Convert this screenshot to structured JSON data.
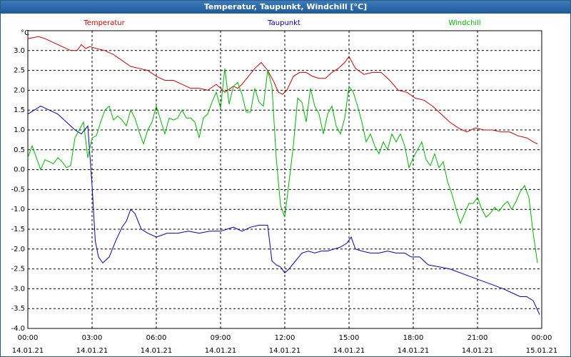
{
  "window": {
    "title": "Temperatur, Taupunkt, Windchill [°C]"
  },
  "chart_data": {
    "type": "line",
    "title": "Temperatur, Taupunkt, Windchill [°C]",
    "ylabel": "°C",
    "ylim": [
      -4.0,
      3.5
    ],
    "grid": true,
    "legend_position": "top",
    "xlim_hours": [
      0,
      24
    ],
    "y_ticks": [
      "3.0",
      "2.5",
      "2.0",
      "1.5",
      "1.0",
      "0.5",
      "0.0",
      "-0.5",
      "-1.0",
      "-1.5",
      "-2.0",
      "-2.5",
      "-3.0",
      "-3.5",
      "-4.0"
    ],
    "x_ticks": [
      {
        "time": "00:00",
        "date": "14.01.21"
      },
      {
        "time": "03:00",
        "date": "14.01.21"
      },
      {
        "time": "06:00",
        "date": "14.01.21"
      },
      {
        "time": "09:00",
        "date": "14.01.21"
      },
      {
        "time": "12:00",
        "date": "14.01.21"
      },
      {
        "time": "15:00",
        "date": "14.01.21"
      },
      {
        "time": "18:00",
        "date": "14.01.21"
      },
      {
        "time": "21:00",
        "date": "14.01.21"
      },
      {
        "time": "00:00",
        "date": "15.01.21"
      }
    ],
    "series": [
      {
        "name": "Temperatur",
        "color": "#cc0000",
        "x": [
          0,
          0.5,
          0.8,
          1.2,
          1.6,
          2.0,
          2.3,
          2.5,
          2.7,
          2.9,
          3.2,
          3.6,
          4.0,
          4.4,
          4.8,
          5.2,
          5.6,
          6.0,
          6.4,
          6.8,
          7.2,
          7.6,
          8.0,
          8.4,
          8.8,
          9.2,
          9.6,
          9.8,
          10.0,
          10.3,
          10.6,
          10.9,
          11.2,
          11.5,
          11.7,
          11.9,
          12.1,
          12.4,
          12.7,
          13.0,
          13.3,
          13.6,
          13.9,
          14.2,
          14.5,
          14.8,
          15.0,
          15.3,
          15.7,
          16.1,
          16.5,
          16.9,
          17.3,
          17.7,
          18.1,
          18.5,
          18.9,
          19.3,
          19.7,
          20.1,
          20.5,
          20.9,
          21.3,
          21.7,
          22.1,
          22.5,
          22.9,
          23.3,
          23.6,
          23.8
        ],
        "values": [
          3.3,
          3.35,
          3.3,
          3.2,
          3.1,
          3.0,
          3.0,
          3.15,
          3.05,
          3.1,
          3.05,
          3.0,
          2.9,
          2.75,
          2.6,
          2.55,
          2.5,
          2.35,
          2.25,
          2.25,
          2.15,
          2.05,
          2.05,
          2.0,
          2.15,
          1.95,
          2.1,
          2.05,
          2.15,
          2.35,
          2.55,
          2.7,
          2.5,
          2.2,
          1.95,
          1.9,
          2.0,
          2.35,
          2.45,
          2.45,
          2.35,
          2.3,
          2.3,
          2.45,
          2.55,
          2.7,
          2.85,
          2.55,
          2.4,
          2.45,
          2.45,
          2.25,
          2.0,
          1.95,
          1.8,
          1.75,
          1.6,
          1.4,
          1.2,
          1.05,
          0.95,
          1.05,
          1.0,
          1.0,
          0.95,
          0.95,
          0.85,
          0.8,
          0.7,
          0.65
        ]
      },
      {
        "name": "Taupunkt",
        "color": "#0000b4",
        "x": [
          0,
          0.3,
          0.6,
          1.0,
          1.4,
          1.8,
          2.2,
          2.5,
          2.8,
          3.0,
          3.15,
          3.3,
          3.5,
          3.8,
          4.1,
          4.4,
          4.6,
          4.8,
          5.0,
          5.3,
          5.6,
          6.0,
          6.5,
          7.0,
          7.5,
          8.0,
          8.5,
          9.0,
          9.3,
          9.6,
          10.0,
          10.4,
          10.8,
          11.0,
          11.2,
          11.4,
          11.6,
          11.8,
          12.0,
          12.2,
          12.5,
          12.8,
          13.1,
          13.4,
          13.7,
          14.0,
          14.3,
          14.6,
          14.9,
          15.1,
          15.3,
          15.6,
          16.0,
          16.4,
          16.8,
          17.2,
          17.6,
          17.9,
          18.3,
          18.7,
          19.2,
          19.7,
          20.2,
          20.7,
          21.2,
          21.7,
          22.2,
          22.6,
          23.0,
          23.3,
          23.6,
          23.9
        ],
        "values": [
          1.4,
          1.5,
          1.6,
          1.5,
          1.4,
          1.2,
          1.0,
          0.9,
          1.1,
          -0.4,
          -1.8,
          -2.2,
          -2.35,
          -2.2,
          -1.8,
          -1.45,
          -1.3,
          -1.0,
          -1.1,
          -1.5,
          -1.6,
          -1.7,
          -1.6,
          -1.6,
          -1.55,
          -1.6,
          -1.55,
          -1.55,
          -1.5,
          -1.45,
          -1.55,
          -1.45,
          -1.4,
          -1.4,
          -1.4,
          -2.3,
          -2.4,
          -2.45,
          -2.6,
          -2.5,
          -2.3,
          -2.1,
          -2.05,
          -2.1,
          -2.05,
          -2.05,
          -2.0,
          -1.95,
          -1.85,
          -1.7,
          -2.0,
          -2.05,
          -2.1,
          -2.1,
          -2.05,
          -2.1,
          -2.1,
          -2.2,
          -2.2,
          -2.4,
          -2.45,
          -2.5,
          -2.6,
          -2.7,
          -2.8,
          -2.9,
          -3.0,
          -3.1,
          -3.2,
          -3.2,
          -3.3,
          -3.65
        ]
      },
      {
        "name": "Windchill",
        "color": "#00b400",
        "x": [
          0,
          0.2,
          0.4,
          0.6,
          0.8,
          1.0,
          1.2,
          1.4,
          1.6,
          1.8,
          2.0,
          2.2,
          2.4,
          2.6,
          2.8,
          3.0,
          3.2,
          3.4,
          3.6,
          3.8,
          4.0,
          4.2,
          4.4,
          4.6,
          4.8,
          5.0,
          5.2,
          5.4,
          5.6,
          5.8,
          6.0,
          6.2,
          6.4,
          6.6,
          6.8,
          7.0,
          7.2,
          7.4,
          7.6,
          7.8,
          8.0,
          8.2,
          8.4,
          8.6,
          8.8,
          9.0,
          9.2,
          9.4,
          9.6,
          9.8,
          10.0,
          10.2,
          10.4,
          10.6,
          10.8,
          11.0,
          11.2,
          11.4,
          11.6,
          11.8,
          12.0,
          12.2,
          12.4,
          12.6,
          12.8,
          13.0,
          13.2,
          13.4,
          13.6,
          13.8,
          14.0,
          14.2,
          14.4,
          14.6,
          14.8,
          15.0,
          15.2,
          15.4,
          15.6,
          15.8,
          16.0,
          16.2,
          16.4,
          16.6,
          16.8,
          17.0,
          17.2,
          17.4,
          17.6,
          17.8,
          18.0,
          18.2,
          18.4,
          18.6,
          18.8,
          19.0,
          19.2,
          19.4,
          19.6,
          19.8,
          20.0,
          20.2,
          20.4,
          20.6,
          20.8,
          21.0,
          21.2,
          21.4,
          21.6,
          21.8,
          22.0,
          22.2,
          22.4,
          22.6,
          22.8,
          23.0,
          23.2,
          23.4,
          23.6,
          23.8
        ],
        "values": [
          0.3,
          0.6,
          0.3,
          0.0,
          0.25,
          0.2,
          0.15,
          0.3,
          0.2,
          0.05,
          0.1,
          0.8,
          1.0,
          1.2,
          0.3,
          0.8,
          0.85,
          1.2,
          1.5,
          1.6,
          1.25,
          1.35,
          1.25,
          1.1,
          1.5,
          1.3,
          0.95,
          0.65,
          1.0,
          1.2,
          1.6,
          1.25,
          0.9,
          1.3,
          1.25,
          1.3,
          1.5,
          1.3,
          1.3,
          1.2,
          0.8,
          1.3,
          1.4,
          1.7,
          1.95,
          1.55,
          2.55,
          1.65,
          2.1,
          2.2,
          1.9,
          1.45,
          1.45,
          2.05,
          1.7,
          1.6,
          2.5,
          2.1,
          0.3,
          -0.9,
          -1.2,
          -0.3,
          0.6,
          1.8,
          1.7,
          1.2,
          2.05,
          1.6,
          1.4,
          0.9,
          1.4,
          1.6,
          1.1,
          0.9,
          1.3,
          2.1,
          1.95,
          1.6,
          1.2,
          0.7,
          0.9,
          0.6,
          0.4,
          0.7,
          0.5,
          0.9,
          0.7,
          0.9,
          0.6,
          0.05,
          0.3,
          0.5,
          0.7,
          0.25,
          0.1,
          0.4,
          0.05,
          0.2,
          -0.3,
          -0.6,
          -1.0,
          -1.35,
          -1.1,
          -0.85,
          -0.85,
          -0.7,
          -1.0,
          -1.2,
          -1.1,
          -0.95,
          -1.05,
          -0.9,
          -0.8,
          -1.0,
          -0.8,
          -0.55,
          -0.4,
          -0.7,
          -1.6,
          -2.35
        ]
      }
    ]
  }
}
